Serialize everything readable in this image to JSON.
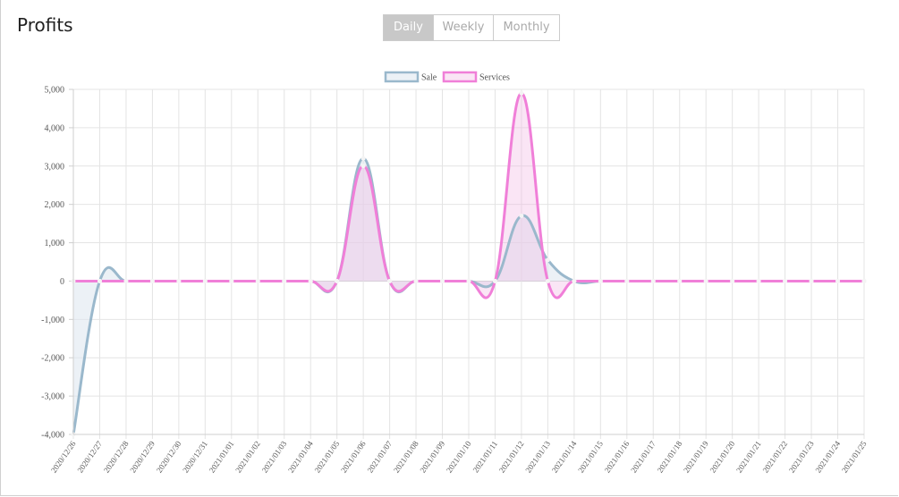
{
  "header": {
    "title": "Profits",
    "tabs": [
      {
        "label": "Daily",
        "active": true
      },
      {
        "label": "Weekly",
        "active": false
      },
      {
        "label": "Monthly",
        "active": false
      }
    ]
  },
  "chart_data": {
    "type": "area",
    "categories": [
      "2020/12/26",
      "2020/12/27",
      "2020/12/28",
      "2020/12/29",
      "2020/12/30",
      "2020/12/31",
      "2021/01/01",
      "2021/01/02",
      "2021/01/03",
      "2021/01/04",
      "2021/01/05",
      "2021/01/06",
      "2021/01/07",
      "2021/01/08",
      "2021/01/09",
      "2021/01/10",
      "2021/01/11",
      "2021/01/12",
      "2021/01/13",
      "2021/01/14",
      "2021/01/15",
      "2021/01/16",
      "2021/01/17",
      "2021/01/18",
      "2021/01/19",
      "2021/01/20",
      "2021/01/21",
      "2021/01/22",
      "2021/01/23",
      "2021/01/24",
      "2021/01/25"
    ],
    "series": [
      {
        "name": "Sale",
        "color": "#9ab8cc",
        "fill": "rgba(220,230,238,0.55)",
        "values": [
          -4000,
          0,
          0,
          0,
          0,
          0,
          0,
          0,
          0,
          0,
          0,
          3200,
          0,
          0,
          0,
          0,
          0,
          1700,
          550,
          0,
          0,
          0,
          0,
          0,
          0,
          0,
          0,
          0,
          0,
          0,
          0
        ]
      },
      {
        "name": "Services",
        "color": "#f07fd8",
        "fill": "rgba(240,180,225,0.35)",
        "values": [
          0,
          0,
          0,
          0,
          0,
          0,
          0,
          0,
          0,
          0,
          0,
          3000,
          0,
          0,
          0,
          0,
          0,
          4900,
          0,
          0,
          0,
          0,
          0,
          0,
          0,
          0,
          0,
          0,
          0,
          0,
          0
        ]
      }
    ],
    "yticks": [
      "5,000",
      "4,000",
      "3,000",
      "2,000",
      "1,000",
      "0",
      "-1,000",
      "-2,000",
      "-3,000",
      "-4,000"
    ],
    "ylim": [
      -4000,
      5000
    ],
    "grid": true,
    "legend": "top-center"
  }
}
